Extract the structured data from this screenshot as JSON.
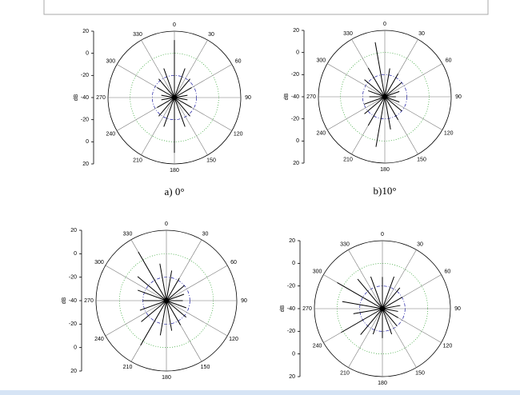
{
  "chart_data": [
    {
      "type": "polar",
      "caption": "a) 0°",
      "ylabel": "dB",
      "color": "#000000",
      "grid": true,
      "rlim": [
        -40,
        20
      ],
      "rticks": [
        -40,
        -20,
        0,
        20
      ],
      "thetaticks": [
        0,
        30,
        60,
        90,
        120,
        150,
        180,
        210,
        240,
        270,
        300,
        330
      ],
      "theta": [
        0,
        10,
        20,
        30,
        40,
        50,
        60,
        70,
        80,
        90,
        100,
        110,
        120,
        130,
        140,
        150,
        160,
        170,
        180,
        190,
        200,
        210,
        220,
        230,
        240,
        250,
        260,
        270,
        280,
        290,
        300,
        310,
        320,
        330,
        340,
        350
      ],
      "r": [
        12,
        -40,
        -12,
        -40,
        -18,
        -40,
        -22,
        -40,
        -28,
        -40,
        -28,
        -40,
        -22,
        -40,
        -18,
        -40,
        -12,
        -40,
        10,
        -40,
        -12,
        -40,
        -18,
        -40,
        -22,
        -40,
        -28,
        -40,
        -28,
        -40,
        -22,
        -40,
        -18,
        -40,
        -12,
        -40
      ]
    },
    {
      "type": "polar",
      "caption": "b)10°",
      "ylabel": "dB",
      "color": "#000000",
      "grid": true,
      "rlim": [
        -40,
        20
      ],
      "rticks": [
        -40,
        -20,
        0,
        20
      ],
      "thetaticks": [
        0,
        30,
        60,
        90,
        120,
        150,
        180,
        210,
        240,
        270,
        300,
        330
      ],
      "theta": [
        0,
        10,
        20,
        30,
        40,
        50,
        60,
        70,
        80,
        90,
        100,
        110,
        120,
        130,
        140,
        150,
        160,
        170,
        180,
        190,
        200,
        210,
        220,
        230,
        240,
        250,
        260,
        270,
        280,
        290,
        300,
        310,
        320,
        330,
        340,
        350
      ],
      "r": [
        -40,
        -14,
        -40,
        -16,
        -40,
        -20,
        -40,
        -26,
        -40,
        -30,
        -40,
        -26,
        -40,
        -20,
        -40,
        -16,
        -40,
        -10,
        -40,
        6,
        -40,
        -10,
        -40,
        -16,
        -40,
        -20,
        -40,
        -26,
        -40,
        -24,
        -40,
        -16,
        -40,
        -10,
        -40,
        10
      ]
    },
    {
      "type": "polar",
      "ylabel": "dB",
      "color": "#000000",
      "grid": true,
      "rlim": [
        -40,
        20
      ],
      "rticks": [
        -40,
        -20,
        0,
        20
      ],
      "thetaticks": [
        0,
        30,
        60,
        90,
        120,
        150,
        180,
        210,
        240,
        270,
        300,
        330
      ],
      "theta": [
        0,
        10,
        20,
        30,
        40,
        50,
        60,
        70,
        80,
        90,
        100,
        110,
        120,
        130,
        140,
        150,
        160,
        170,
        180,
        190,
        200,
        210,
        220,
        230,
        240,
        250,
        260,
        270,
        280,
        290,
        300,
        310,
        320,
        330,
        340,
        350
      ],
      "r": [
        -40,
        -14,
        -40,
        -18,
        -40,
        -20,
        -40,
        -24,
        -40,
        -26,
        -40,
        -22,
        -40,
        -18,
        -40,
        -16,
        -40,
        -14,
        -40,
        -10,
        -40,
        4,
        -40,
        -12,
        -40,
        -16,
        -40,
        -20,
        -40,
        -14,
        -40,
        -8,
        -40,
        8,
        -40,
        -8
      ]
    },
    {
      "type": "polar",
      "ylabel": "dB",
      "color": "#000000",
      "grid": true,
      "rlim": [
        -40,
        20
      ],
      "rticks": [
        -40,
        -20,
        0,
        20
      ],
      "thetaticks": [
        0,
        30,
        60,
        90,
        120,
        150,
        180,
        210,
        240,
        270,
        300,
        330
      ],
      "theta": [
        0,
        10,
        20,
        30,
        40,
        50,
        60,
        70,
        80,
        90,
        100,
        110,
        120,
        130,
        140,
        150,
        160,
        170,
        180,
        190,
        200,
        210,
        220,
        230,
        240,
        250,
        260,
        270,
        280,
        290,
        300,
        310,
        320,
        330,
        340,
        350
      ],
      "r": [
        -12,
        -40,
        -10,
        -40,
        -16,
        -40,
        -20,
        -40,
        -24,
        -40,
        -26,
        -40,
        -24,
        -40,
        -20,
        -40,
        -16,
        -40,
        -14,
        -40,
        -16,
        -40,
        -10,
        -40,
        2,
        -40,
        -14,
        -40,
        -4,
        -40,
        6,
        -40,
        -6,
        -40,
        -10,
        -40
      ]
    }
  ]
}
